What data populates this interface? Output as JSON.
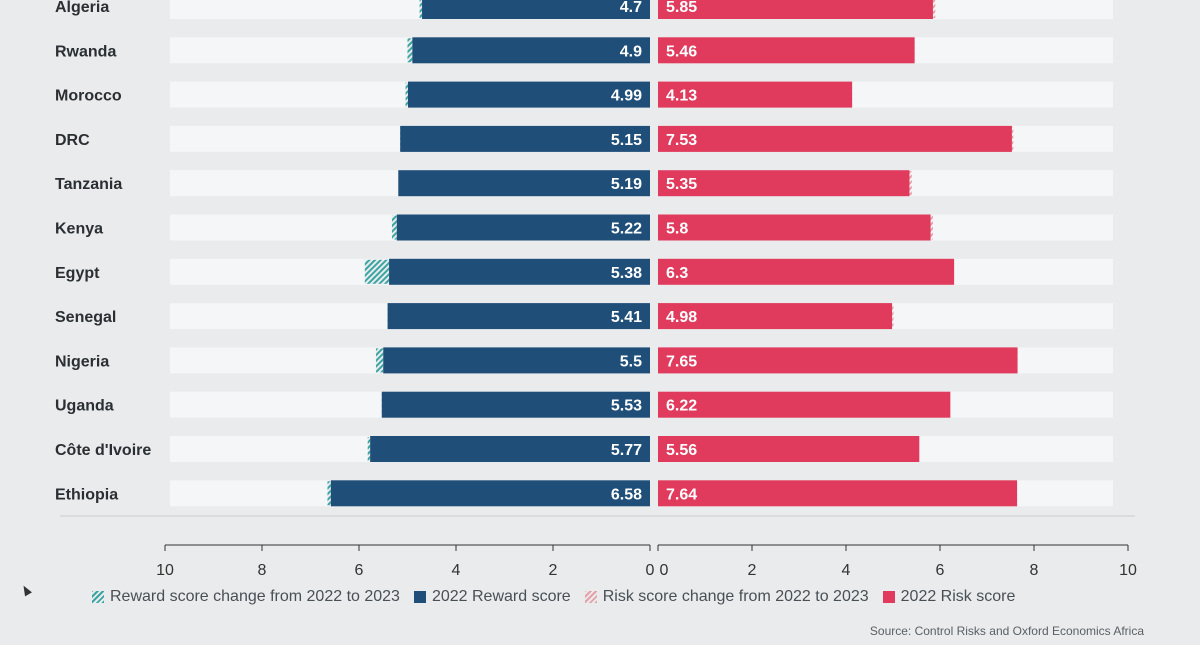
{
  "chart_data": {
    "type": "bar",
    "layout": "diverging-horizontal",
    "categories": [
      "Algeria",
      "Rwanda",
      "Morocco",
      "DRC",
      "Tanzania",
      "Kenya",
      "Egypt",
      "Senegal",
      "Nigeria",
      "Uganda",
      "Côte d'Ivoire",
      "Ethiopia"
    ],
    "series": [
      {
        "name": "2022 Reward score",
        "side": "left",
        "color": "#1f4e79",
        "values": [
          4.7,
          4.9,
          4.99,
          5.15,
          5.19,
          5.22,
          5.38,
          5.41,
          5.5,
          5.53,
          5.77,
          6.58
        ],
        "labels": [
          "4.7",
          "4.9",
          "4.99",
          "5.15",
          "5.19",
          "5.22",
          "5.38",
          "5.41",
          "5.5",
          "5.53",
          "5.77",
          "6.58"
        ]
      },
      {
        "name": "Reward score change from 2022 to 2023",
        "side": "left",
        "color": "#3aa5a3",
        "pattern": "hatch",
        "values": [
          0.05,
          0.1,
          0.05,
          -0.2,
          0,
          0.1,
          0.5,
          -0.35,
          0.15,
          -0.7,
          0.05,
          0.07
        ]
      },
      {
        "name": "2022 Risk score",
        "side": "right",
        "color": "#e03a5c",
        "values": [
          5.85,
          5.46,
          4.13,
          7.53,
          5.35,
          5.8,
          6.3,
          4.98,
          7.65,
          6.22,
          5.56,
          7.64
        ],
        "labels": [
          "5.85",
          "5.46",
          "4.13",
          "7.53",
          "5.35",
          "5.8",
          "6.3",
          "4.98",
          "7.65",
          "6.22",
          "5.56",
          "7.64"
        ]
      },
      {
        "name": "Risk score change from 2022 to 2023",
        "side": "right",
        "color": "#e5a0a8",
        "pattern": "hatch",
        "values": [
          0.05,
          -0.3,
          -0.2,
          0.03,
          0.05,
          0.05,
          -0.3,
          0.03,
          -0.4,
          0,
          0,
          -0.05
        ]
      }
    ],
    "left_axis": {
      "range": [
        10,
        0
      ],
      "ticks": [
        "10",
        "8",
        "6",
        "4",
        "2",
        "0"
      ]
    },
    "right_axis": {
      "range": [
        0,
        10
      ],
      "ticks": [
        "0",
        "2",
        "4",
        "6",
        "8",
        "10"
      ]
    },
    "grid": false,
    "legend_position": "bottom"
  },
  "legend": {
    "reward_change": "Reward score change from 2022 to 2023",
    "reward": "2022 Reward score",
    "risk_change": "Risk score change from 2022 to 2023",
    "risk": "2022 Risk score"
  },
  "source": "Source: Control Risks and Oxford Economics Africa",
  "colors": {
    "reward": "#1f4e79",
    "reward_change": "#3aa5a3",
    "risk": "#e03a5c",
    "risk_change": "#e5a0a8",
    "track": "#f4f6f7",
    "background": "#e9ebec"
  }
}
